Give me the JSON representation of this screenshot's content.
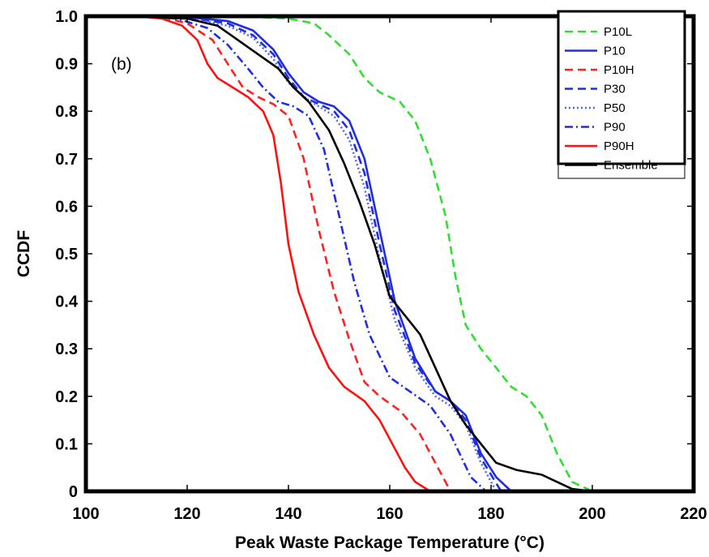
{
  "chart_data": {
    "type": "line",
    "panel_label": "(b)",
    "xlabel": "Peak Waste Package Temperature (°C)",
    "ylabel": "CCDF",
    "xlim": [
      100,
      220
    ],
    "ylim": [
      0,
      1.0
    ],
    "xticks": [
      "100",
      "120",
      "140",
      "160",
      "180",
      "200",
      "220"
    ],
    "yticks": [
      "0",
      "0.1",
      "0.2",
      "0.3",
      "0.4",
      "0.5",
      "0.6",
      "0.7",
      "0.8",
      "0.9",
      "1.0"
    ],
    "grid": false,
    "legend_position": "top-right",
    "series": [
      {
        "name": "P10L",
        "color": "#33dd33",
        "dash": "dashed",
        "x": [
          130,
          140,
          145,
          148,
          152,
          155,
          158,
          162,
          165,
          168,
          171,
          173,
          175,
          178,
          181,
          184,
          187,
          190,
          193,
          196,
          200
        ],
        "y": [
          1.0,
          0.995,
          0.985,
          0.96,
          0.92,
          0.87,
          0.84,
          0.82,
          0.78,
          0.7,
          0.58,
          0.45,
          0.35,
          0.3,
          0.26,
          0.22,
          0.2,
          0.16,
          0.08,
          0.02,
          0.0
        ]
      },
      {
        "name": "P10",
        "color": "#1f2fe0",
        "dash": "solid",
        "x": [
          110,
          120,
          128,
          133,
          137,
          140,
          143,
          146,
          149,
          152,
          155,
          158,
          161,
          165,
          169,
          172,
          175,
          178,
          181,
          184
        ],
        "y": [
          1.0,
          0.998,
          0.99,
          0.97,
          0.93,
          0.88,
          0.84,
          0.82,
          0.81,
          0.78,
          0.7,
          0.55,
          0.4,
          0.28,
          0.21,
          0.19,
          0.16,
          0.08,
          0.03,
          0.0
        ]
      },
      {
        "name": "P10H",
        "color": "#ff2222",
        "dash": "dashed",
        "x": [
          110,
          115,
          120,
          125,
          128,
          131,
          134,
          137,
          140,
          143,
          146,
          149,
          152,
          155,
          158,
          162,
          166,
          170,
          172
        ],
        "y": [
          1.0,
          0.998,
          0.985,
          0.95,
          0.9,
          0.85,
          0.83,
          0.815,
          0.79,
          0.7,
          0.55,
          0.42,
          0.32,
          0.23,
          0.2,
          0.17,
          0.12,
          0.04,
          0.0
        ]
      },
      {
        "name": "P30",
        "color": "#1f2fe0",
        "dash": "dashed",
        "x": [
          110,
          120,
          128,
          133,
          137,
          140,
          143,
          146,
          149,
          152,
          155,
          158,
          161,
          165,
          169,
          172,
          175,
          178,
          182
        ],
        "y": [
          1.0,
          0.997,
          0.985,
          0.96,
          0.92,
          0.87,
          0.83,
          0.815,
          0.8,
          0.76,
          0.67,
          0.52,
          0.38,
          0.27,
          0.21,
          0.19,
          0.15,
          0.07,
          0.0
        ]
      },
      {
        "name": "P50",
        "color": "#5566ff",
        "dash": "dotted",
        "x": [
          110,
          120,
          128,
          133,
          137,
          140,
          143,
          146,
          149,
          152,
          155,
          158,
          161,
          165,
          169,
          172,
          175,
          178,
          181
        ],
        "y": [
          1.0,
          0.997,
          0.98,
          0.955,
          0.91,
          0.86,
          0.83,
          0.81,
          0.79,
          0.74,
          0.64,
          0.49,
          0.36,
          0.26,
          0.2,
          0.18,
          0.14,
          0.06,
          0.0
        ]
      },
      {
        "name": "P90",
        "color": "#1f2fe0",
        "dash": "dashdot",
        "x": [
          110,
          118,
          124,
          128,
          132,
          135,
          138,
          141,
          144,
          147,
          150,
          153,
          156,
          160,
          164,
          168,
          172,
          176,
          179
        ],
        "y": [
          1.0,
          0.995,
          0.975,
          0.94,
          0.89,
          0.85,
          0.82,
          0.81,
          0.79,
          0.72,
          0.58,
          0.44,
          0.33,
          0.24,
          0.21,
          0.18,
          0.12,
          0.03,
          0.0
        ]
      },
      {
        "name": "P90H",
        "color": "#ff1111",
        "dash": "solid",
        "x": [
          110,
          115,
          119,
          122,
          124,
          126,
          129,
          132,
          135,
          137,
          138.5,
          140,
          142,
          145,
          148,
          151,
          155,
          158,
          161,
          163,
          165,
          168
        ],
        "y": [
          1.0,
          0.995,
          0.98,
          0.95,
          0.9,
          0.87,
          0.85,
          0.83,
          0.8,
          0.75,
          0.65,
          0.52,
          0.42,
          0.33,
          0.26,
          0.22,
          0.19,
          0.15,
          0.09,
          0.05,
          0.02,
          0.0
        ]
      },
      {
        "name": "Ensemble",
        "color": "#000000",
        "dash": "solid",
        "x": [
          110,
          120,
          126,
          130,
          134,
          138,
          141,
          144,
          148,
          151,
          154,
          157,
          160,
          163,
          166,
          169,
          172,
          175,
          178,
          181,
          185,
          190,
          193,
          196,
          200
        ],
        "y": [
          1.0,
          0.995,
          0.98,
          0.95,
          0.92,
          0.89,
          0.85,
          0.82,
          0.76,
          0.69,
          0.61,
          0.52,
          0.41,
          0.37,
          0.33,
          0.26,
          0.19,
          0.14,
          0.1,
          0.06,
          0.045,
          0.035,
          0.02,
          0.005,
          0.0
        ]
      }
    ]
  }
}
